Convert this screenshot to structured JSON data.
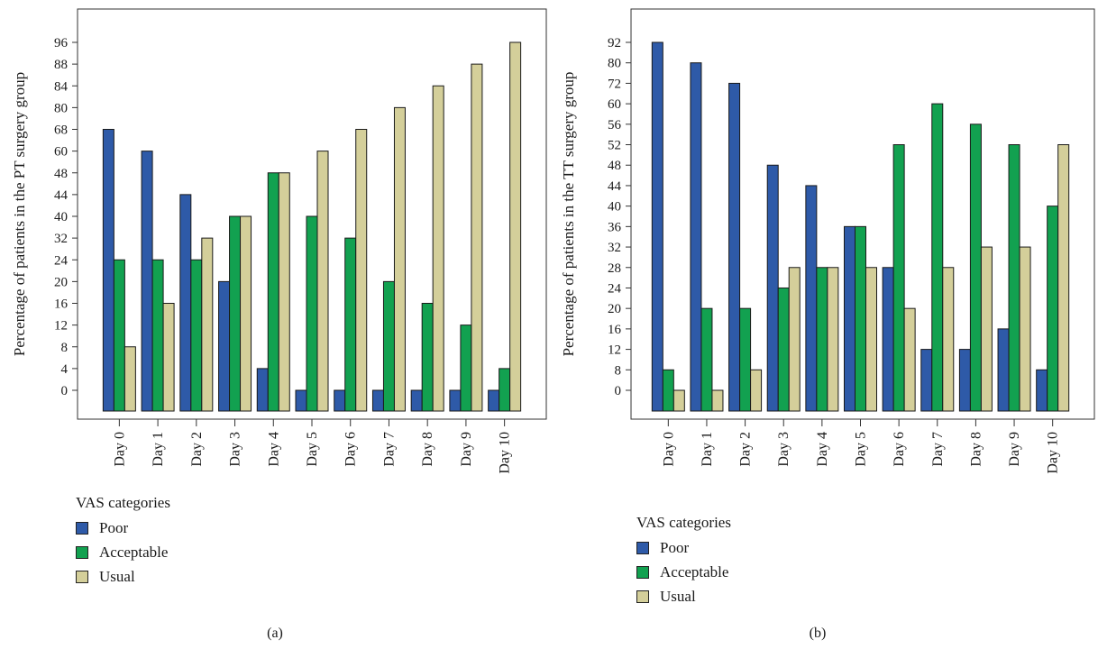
{
  "colors": {
    "poor": "#2e5aa8",
    "acceptable": "#12a150",
    "usual": "#d4cf9a"
  },
  "chart_data": [
    {
      "type": "bar",
      "ylabel": "Percentage of patients in the PT surgery group",
      "categories": [
        "Day 0",
        "Day 1",
        "Day 2",
        "Day 3",
        "Day 4",
        "Day 5",
        "Day 6",
        "Day 7",
        "Day 8",
        "Day 9",
        "Day 10"
      ],
      "yticks": [
        "0",
        "4",
        "8",
        "12",
        "16",
        "20",
        "24",
        "32",
        "40",
        "44",
        "48",
        "60",
        "68",
        "80",
        "84",
        "88",
        "96"
      ],
      "series": [
        {
          "name": "Poor",
          "color": "#2e5aa8",
          "values": [
            68,
            60,
            44,
            20,
            4,
            0,
            0,
            0,
            0,
            0,
            0
          ]
        },
        {
          "name": "Acceptable",
          "color": "#12a150",
          "values": [
            24,
            24,
            24,
            40,
            48,
            40,
            32,
            20,
            16,
            12,
            4
          ]
        },
        {
          "name": "Usual",
          "color": "#d4cf9a",
          "values": [
            8,
            16,
            32,
            40,
            48,
            60,
            68,
            80,
            84,
            88,
            96
          ]
        }
      ],
      "legend_title": "VAS categories",
      "legend_position": "bottom-left",
      "caption": "(a)"
    },
    {
      "type": "bar",
      "ylabel": "Percentage of patients in the TT surgery group",
      "categories": [
        "Day 0",
        "Day 1",
        "Day 2",
        "Day 3",
        "Day 4",
        "Day 5",
        "Day 6",
        "Day 7",
        "Day 8",
        "Day 9",
        "Day 10"
      ],
      "yticks": [
        "0",
        "8",
        "12",
        "16",
        "20",
        "24",
        "28",
        "32",
        "36",
        "40",
        "44",
        "48",
        "52",
        "56",
        "60",
        "72",
        "80",
        "92"
      ],
      "series": [
        {
          "name": "Poor",
          "color": "#2e5aa8",
          "values": [
            92,
            80,
            72,
            48,
            44,
            36,
            28,
            12,
            12,
            16,
            8
          ]
        },
        {
          "name": "Acceptable",
          "color": "#12a150",
          "values": [
            8,
            20,
            20,
            24,
            28,
            36,
            52,
            60,
            56,
            52,
            40
          ]
        },
        {
          "name": "Usual",
          "color": "#d4cf9a",
          "values": [
            0,
            0,
            8,
            28,
            28,
            28,
            20,
            28,
            32,
            32,
            52
          ]
        }
      ],
      "legend_title": "VAS categories",
      "legend_position": "bottom-left",
      "caption": "(b)"
    }
  ]
}
